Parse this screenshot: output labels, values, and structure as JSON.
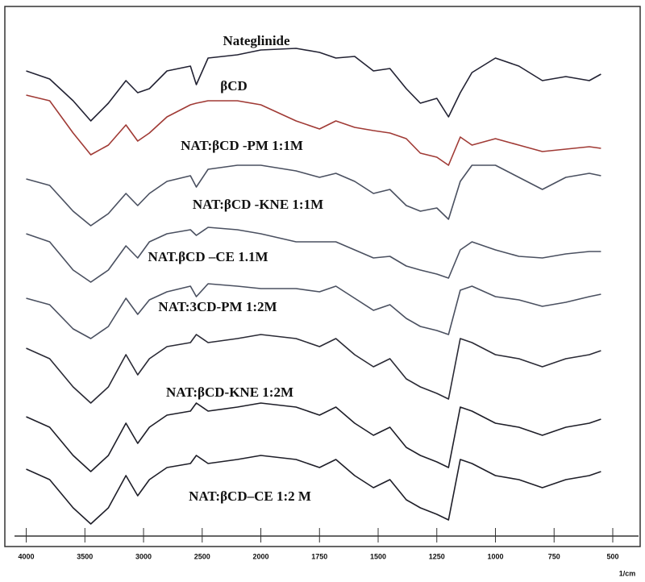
{
  "chart_data": {
    "type": "line",
    "x": [
      4000,
      3800,
      3600,
      3450,
      3300,
      3150,
      3050,
      2950,
      2800,
      2600,
      2550,
      2450,
      2200,
      2000,
      1850,
      1750,
      1680,
      1600,
      1520,
      1450,
      1380,
      1320,
      1250,
      1200,
      1150,
      1100,
      1000,
      900,
      800,
      700,
      600,
      550
    ],
    "xlim": [
      4100,
      390
    ],
    "x_scale_break": {
      "at": 2000,
      "factor": 2
    },
    "xticks": [
      4000,
      3500,
      3000,
      2500,
      2000,
      1750,
      1500,
      1250,
      1000,
      750,
      500
    ],
    "xlabel": "1/cm",
    "ylim": [
      0,
      620
    ],
    "series": [
      {
        "name": "Nateglinide",
        "color": "#222233",
        "values": [
          572,
          562,
          535,
          510,
          532,
          560,
          545,
          550,
          572,
          578,
          555,
          588,
          592,
          598,
          600,
          595,
          588,
          590,
          572,
          575,
          550,
          532,
          538,
          515,
          545,
          570,
          588,
          578,
          560,
          565,
          560,
          568
        ]
      },
      {
        "name": "βCD",
        "color": "#a03a35",
        "values": [
          542,
          535,
          495,
          468,
          480,
          505,
          485,
          495,
          515,
          530,
          532,
          535,
          535,
          530,
          510,
          500,
          510,
          502,
          498,
          495,
          488,
          470,
          465,
          455,
          490,
          480,
          488,
          480,
          472,
          475,
          478,
          476
        ]
      },
      {
        "name": "NAT:βCD -PM 1:1M",
        "color": "#4a5060",
        "values": [
          438,
          430,
          398,
          380,
          395,
          420,
          405,
          420,
          435,
          442,
          428,
          450,
          455,
          455,
          448,
          440,
          445,
          435,
          420,
          425,
          405,
          398,
          402,
          388,
          435,
          455,
          455,
          440,
          425,
          440,
          445,
          442
        ]
      },
      {
        "name": "NAT:βCD -KNE 1:1M",
        "color": "#4a5060",
        "values": [
          370,
          360,
          325,
          310,
          325,
          355,
          340,
          360,
          370,
          375,
          368,
          378,
          375,
          370,
          360,
          360,
          360,
          350,
          340,
          342,
          330,
          325,
          320,
          315,
          350,
          360,
          350,
          342,
          340,
          345,
          348,
          348
        ]
      },
      {
        "name": "NAT.βCD –CE 1.1M",
        "color": "#4a5060",
        "values": [
          290,
          282,
          252,
          240,
          255,
          290,
          270,
          288,
          298,
          305,
          292,
          308,
          305,
          302,
          302,
          298,
          305,
          290,
          275,
          282,
          265,
          255,
          250,
          245,
          300,
          305,
          292,
          288,
          280,
          285,
          292,
          295
        ]
      },
      {
        "name": "NAT:3CD-PM 1:2M",
        "color": "#2a2a35",
        "values": [
          228,
          215,
          180,
          160,
          180,
          220,
          195,
          215,
          230,
          235,
          245,
          235,
          240,
          245,
          240,
          230,
          240,
          220,
          205,
          215,
          190,
          180,
          172,
          165,
          240,
          235,
          220,
          215,
          205,
          215,
          220,
          225
        ]
      },
      {
        "name": "NAT:βCD-KNE 1:2M",
        "color": "#1e1e28",
        "values": [
          143,
          130,
          95,
          75,
          95,
          135,
          110,
          130,
          145,
          150,
          160,
          150,
          155,
          160,
          155,
          145,
          155,
          135,
          120,
          130,
          105,
          95,
          87,
          80,
          155,
          150,
          135,
          130,
          120,
          130,
          135,
          140
        ]
      },
      {
        "name": "NAT:βCD–CE 1:2 M",
        "color": "#1e1e28",
        "values": [
          78,
          65,
          30,
          10,
          30,
          70,
          45,
          65,
          80,
          85,
          95,
          85,
          90,
          95,
          90,
          80,
          90,
          70,
          55,
          65,
          40,
          30,
          22,
          15,
          90,
          85,
          70,
          65,
          55,
          65,
          70,
          75
        ]
      }
    ]
  }
}
